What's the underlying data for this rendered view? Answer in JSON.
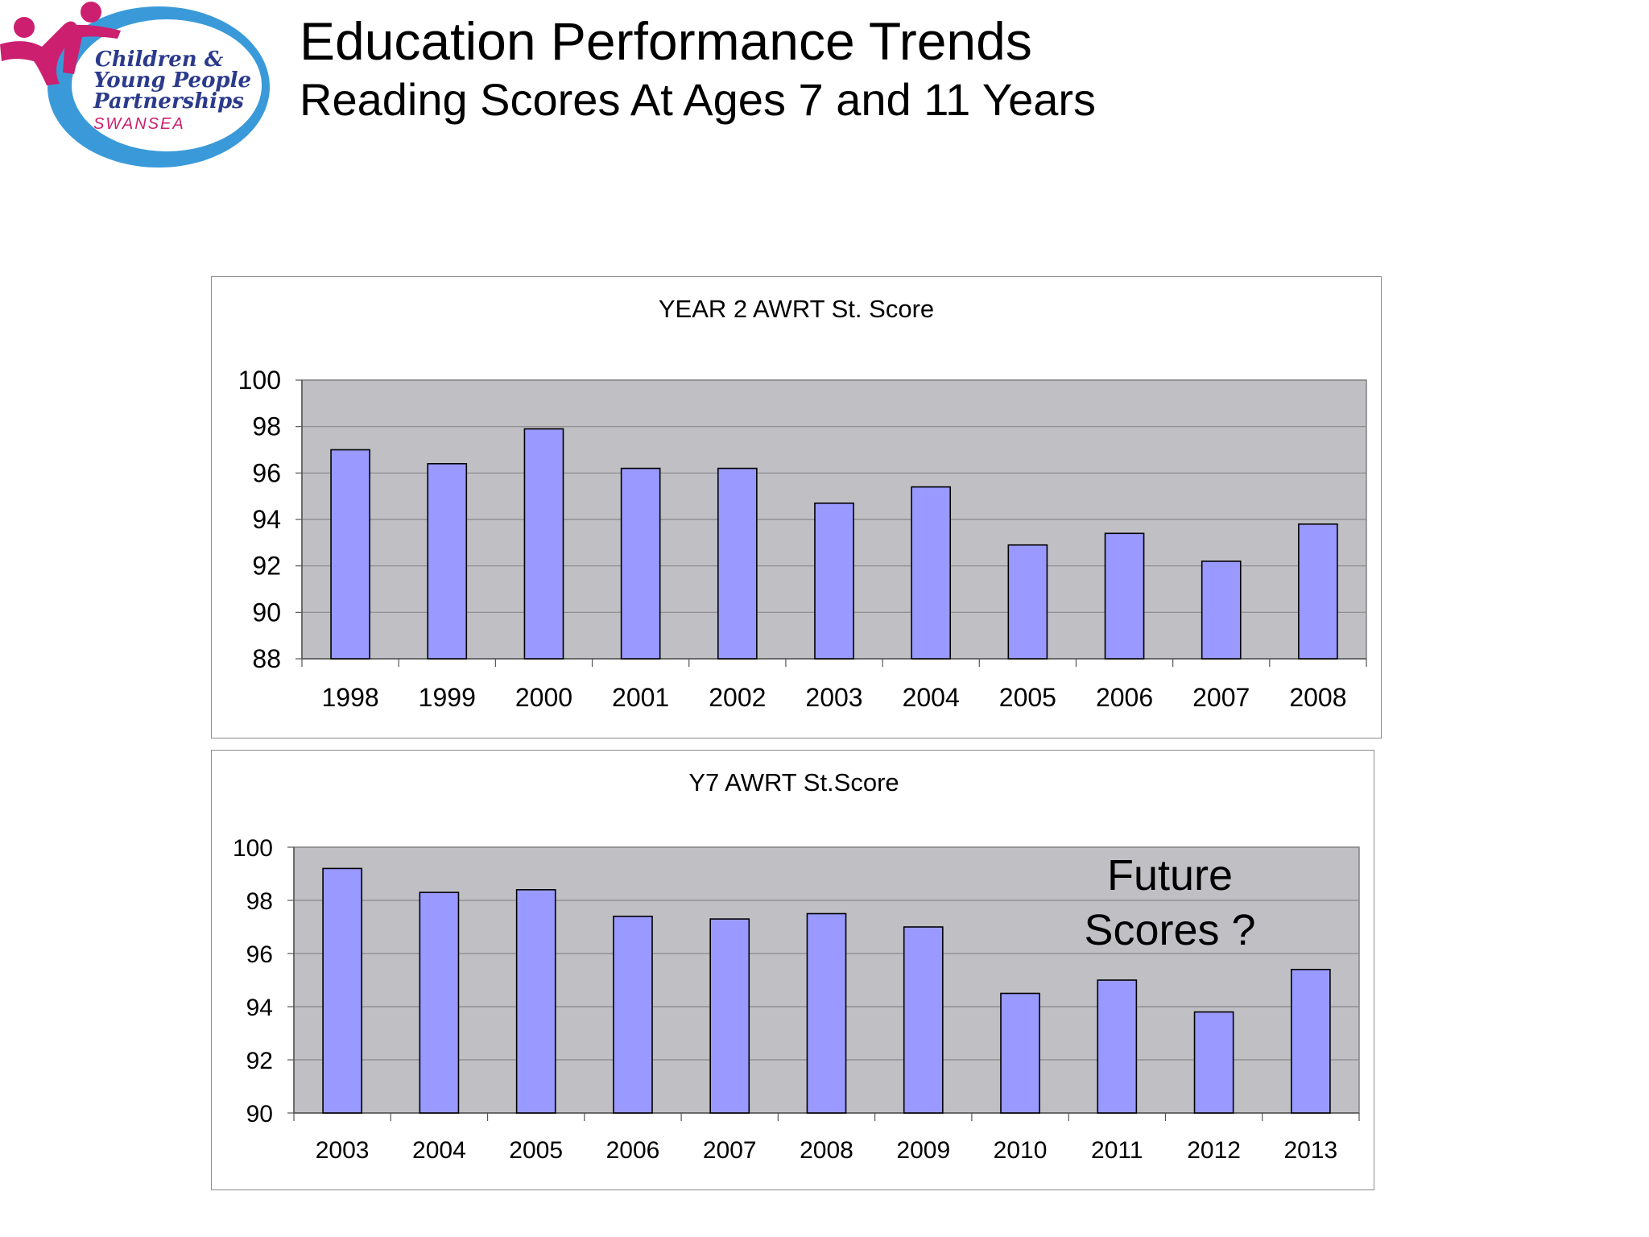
{
  "header": {
    "title": "Education Performance Trends",
    "subtitle": "Reading Scores At Ages 7 and 11 Years"
  },
  "logo": {
    "lines": [
      "Children &",
      "Young People",
      "Partnerships",
      "SWANSEA"
    ],
    "colors": {
      "figure": "#cc1f6f",
      "swoosh": "#3a9ad9",
      "text": "#2b3a8c"
    }
  },
  "colors": {
    "plot_background": "#c0bfc4",
    "bar_fill": "#9999ff",
    "bar_stroke": "#000000",
    "gridline": "#888888"
  },
  "chart_data": [
    {
      "type": "bar",
      "title": "YEAR 2 AWRT  St. Score",
      "categories": [
        "1998",
        "1999",
        "2000",
        "2001",
        "2002",
        "2003",
        "2004",
        "2005",
        "2006",
        "2007",
        "2008"
      ],
      "values": [
        97.0,
        96.4,
        97.9,
        96.2,
        96.2,
        94.7,
        95.4,
        92.9,
        93.4,
        92.2,
        93.8
      ],
      "ylim": [
        88,
        100
      ],
      "yticks": [
        88,
        90,
        92,
        94,
        96,
        98,
        100
      ],
      "grid": true,
      "xlabel": "",
      "ylabel": ""
    },
    {
      "type": "bar",
      "title": "Y7 AWRT St.Score",
      "categories": [
        "2003",
        "2004",
        "2005",
        "2006",
        "2007",
        "2008",
        "2009",
        "2010",
        "2011",
        "2012",
        "2013"
      ],
      "values": [
        99.2,
        98.3,
        98.4,
        97.4,
        97.3,
        97.5,
        97.0,
        94.5,
        95.0,
        93.8,
        95.4
      ],
      "ylim": [
        90,
        100
      ],
      "yticks": [
        90,
        92,
        94,
        96,
        98,
        100
      ],
      "grid": true,
      "xlabel": "",
      "ylabel": "",
      "annotation": [
        "Future",
        "Scores ?"
      ]
    }
  ]
}
